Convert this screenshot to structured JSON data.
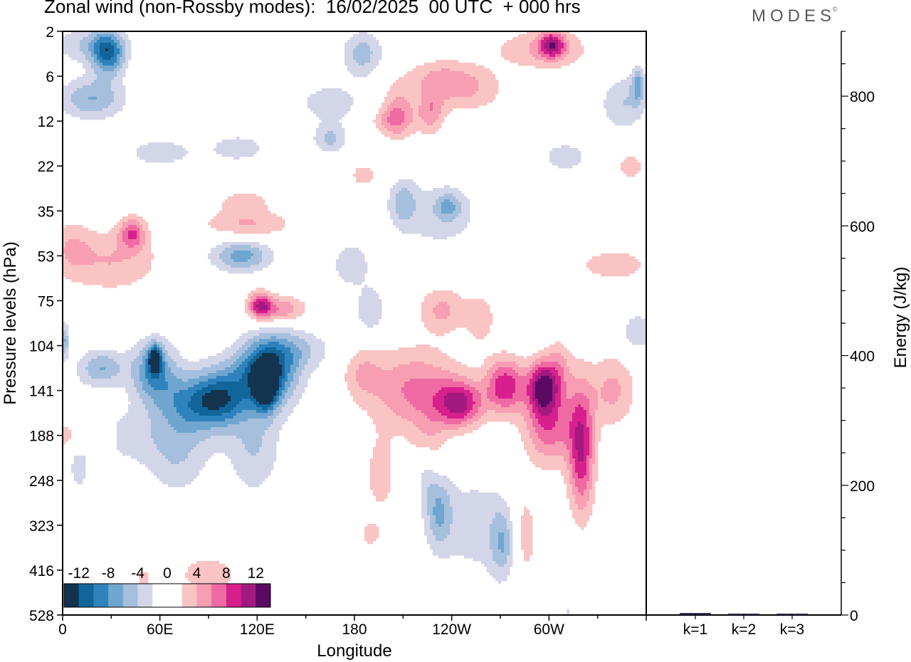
{
  "title": "Zonal wind (non-Rossby modes):  16/02/2025  00 UTC  + 000 hrs",
  "logo": "MODES",
  "logo_mark": "©",
  "chart_data": [
    {
      "type": "heatmap",
      "title": "Zonal wind (non-Rossby modes):  16/02/2025  00 UTC  + 000 hrs",
      "xlabel": "Longitude",
      "ylabel": "Pressure levels (hPa)",
      "x_ticks": [
        {
          "label": "0",
          "lon": 0
        },
        {
          "label": "60E",
          "lon": 60
        },
        {
          "label": "120E",
          "lon": 120
        },
        {
          "label": "180",
          "lon": 180
        },
        {
          "label": "120W",
          "lon": 240
        },
        {
          "label": "60W",
          "lon": 300
        }
      ],
      "xlim": [
        0,
        360
      ],
      "y_ticks": [
        "2",
        "6",
        "12",
        "22",
        "35",
        "53",
        "75",
        "104",
        "141",
        "188",
        "248",
        "323",
        "416",
        "528"
      ],
      "colorbar": {
        "labels": [
          "-12",
          "-8",
          "-4",
          "0",
          "4",
          "8",
          "12"
        ],
        "colors": [
          "#13334f",
          "#12659a",
          "#2f83bd",
          "#6fa6d0",
          "#a6bfdd",
          "#d3d5e8",
          "#ffffff",
          "#ffffff",
          "#f9c4c3",
          "#f79eb3",
          "#ef6aa2",
          "#d7208d",
          "#a21a80",
          "#5b0a63"
        ]
      },
      "blobs": [
        {
          "lon": 218,
          "lev": 8.0,
          "v": 6.5,
          "wx": 28,
          "wy": 0.9
        },
        {
          "lon": 245,
          "lev": 8.3,
          "v": 9.5,
          "wx": 14,
          "wy": 0.5
        },
        {
          "lon": 273,
          "lev": 7.9,
          "v": 9.5,
          "wx": 12,
          "wy": 0.6
        },
        {
          "lon": 296,
          "lev": 7.9,
          "v": 10.5,
          "wx": 9,
          "wy": 0.55
        },
        {
          "lon": 300,
          "lev": 8.7,
          "v": 8,
          "wx": 15,
          "wy": 0.9
        },
        {
          "lon": 320,
          "lev": 9.3,
          "v": 10,
          "wx": 8,
          "wy": 1.4
        },
        {
          "lon": 185,
          "lev": 7.6,
          "v": 3.5,
          "wx": 12,
          "wy": 0.6
        },
        {
          "lon": 226,
          "lev": 9.2,
          "v": 3.0,
          "wx": 10,
          "wy": 0.7
        },
        {
          "lon": 234,
          "lev": 6.2,
          "v": 4.5,
          "wx": 14,
          "wy": 0.5
        },
        {
          "lon": 258,
          "lev": 6.4,
          "v": 3,
          "wx": 10,
          "wy": 0.6
        },
        {
          "lon": 339,
          "lev": 8.0,
          "v": 4.5,
          "wx": 14,
          "wy": 0.8
        },
        {
          "lon": 306,
          "lev": 7.5,
          "v": 4,
          "wx": 8,
          "wy": 0.6
        },
        {
          "lon": 134,
          "lev": 6.2,
          "v": 6,
          "wx": 16,
          "wy": 0.3
        },
        {
          "lon": 122,
          "lev": 6.1,
          "v": 8.5,
          "wx": 7,
          "wy": 0.3
        },
        {
          "lon": 140,
          "lev": 7.1,
          "v": -4,
          "wx": 26,
          "wy": 0.45
        },
        {
          "lon": 118,
          "lev": 7.6,
          "v": -4,
          "wx": 20,
          "wy": 0.45
        },
        {
          "lon": 100,
          "lev": 8.2,
          "v": -4,
          "wx": 20,
          "wy": 0.5
        },
        {
          "lon": 190,
          "lev": 6.2,
          "v": -4,
          "wx": 9,
          "wy": 0.5
        },
        {
          "lon": 110,
          "lev": 5.0,
          "v": -7,
          "wx": 18,
          "wy": 0.35
        },
        {
          "lon": 128,
          "lev": 7.6,
          "v": -8.5,
          "wx": 18,
          "wy": 0.85
        },
        {
          "lon": 125,
          "lev": 7.9,
          "v": -11.5,
          "wx": 7,
          "wy": 0.5
        },
        {
          "lon": 96,
          "lev": 8.2,
          "v": -7,
          "wx": 16,
          "wy": 0.7
        },
        {
          "lon": 56,
          "lev": 7.6,
          "v": -8,
          "wx": 14,
          "wy": 0.7
        },
        {
          "lon": 57,
          "lev": 7.3,
          "v": -11,
          "wx": 4,
          "wy": 0.3
        },
        {
          "lon": 76,
          "lev": 8.3,
          "v": -6,
          "wx": 18,
          "wy": 0.7
        },
        {
          "lon": 24,
          "lev": 7.5,
          "v": -6,
          "wx": 14,
          "wy": 0.4
        },
        {
          "lon": 1,
          "lev": 6.9,
          "v": -6,
          "wx": 3,
          "wy": 0.4
        },
        {
          "lon": 70,
          "lev": 9.4,
          "v": -4,
          "wx": 20,
          "wy": 0.9
        },
        {
          "lon": 118,
          "lev": 9.3,
          "v": -4,
          "wx": 16,
          "wy": 1.0
        },
        {
          "lon": 38,
          "lev": 9.0,
          "v": -3,
          "wx": 20,
          "wy": 0.6
        },
        {
          "lon": 10,
          "lev": 9.4,
          "v": -3,
          "wx": 8,
          "wy": 1.1
        },
        {
          "lon": 60,
          "lev": 2.7,
          "v": -3.5,
          "wx": 20,
          "wy": 0.3
        },
        {
          "lon": 8,
          "lev": 9.0,
          "v": 4,
          "wx": 20,
          "wy": 0.4
        },
        {
          "lon": 43,
          "lev": 4.5,
          "v": 7,
          "wx": 8,
          "wy": 0.35
        },
        {
          "lon": 30,
          "lev": 5.1,
          "v": 4,
          "wx": 30,
          "wy": 0.7
        },
        {
          "lon": 114,
          "lev": 4.3,
          "v": 4,
          "wx": 28,
          "wy": 0.3
        },
        {
          "lon": 28,
          "lev": 0.5,
          "v": -9.5,
          "wx": 10,
          "wy": 0.5
        },
        {
          "lon": 18,
          "lev": 1.5,
          "v": -6,
          "wx": 20,
          "wy": 0.45
        },
        {
          "lon": 16,
          "lev": 0.3,
          "v": -4,
          "wx": 22,
          "wy": 0.4
        },
        {
          "lon": 185,
          "lev": 0.5,
          "v": -5,
          "wx": 12,
          "wy": 0.5
        },
        {
          "lon": 165,
          "lev": 1.6,
          "v": -3,
          "wx": 22,
          "wy": 0.5
        },
        {
          "lon": 165,
          "lev": 2.4,
          "v": -4.5,
          "wx": 10,
          "wy": 0.3
        },
        {
          "lon": 108,
          "lev": 2.6,
          "v": -3,
          "wx": 20,
          "wy": 0.35
        },
        {
          "lon": 202,
          "lev": 2.0,
          "v": 3,
          "wx": 14,
          "wy": 0.3
        },
        {
          "lon": 248,
          "lev": 1.3,
          "v": 4,
          "wx": 24,
          "wy": 0.5
        },
        {
          "lon": 207,
          "lev": 1.8,
          "v": 5,
          "wx": 10,
          "wy": 0.6
        },
        {
          "lon": 227,
          "lev": 1.8,
          "v": 5,
          "wx": 8,
          "wy": 0.5
        },
        {
          "lon": 232,
          "lev": 1.0,
          "v": 3,
          "wx": 22,
          "wy": 0.4
        },
        {
          "lon": 302,
          "lev": 0.3,
          "v": 9,
          "wx": 8,
          "wy": 0.3
        },
        {
          "lon": 296,
          "lev": 0.4,
          "v": 4,
          "wx": 30,
          "wy": 0.45
        },
        {
          "lon": 346,
          "lev": 1.6,
          "v": -4,
          "wx": 14,
          "wy": 0.6
        },
        {
          "lon": 355,
          "lev": 1.2,
          "v": -6,
          "wx": 4,
          "wy": 0.4
        },
        {
          "lon": 232,
          "lev": 4.1,
          "v": -3,
          "wx": 28,
          "wy": 0.8
        },
        {
          "lon": 210,
          "lev": 3.8,
          "v": -4.5,
          "wx": 8,
          "wy": 0.5
        },
        {
          "lon": 238,
          "lev": 3.9,
          "v": -4.5,
          "wx": 8,
          "wy": 0.3
        },
        {
          "lon": 310,
          "lev": 2.8,
          "v": -2.5,
          "wx": 22,
          "wy": 0.5
        },
        {
          "lon": 350,
          "lev": 3.0,
          "v": 3,
          "wx": 10,
          "wy": 0.35
        },
        {
          "lon": 340,
          "lev": 5.2,
          "v": 3.5,
          "wx": 22,
          "wy": 0.35
        },
        {
          "lon": 178,
          "lev": 5.2,
          "v": -3.5,
          "wx": 12,
          "wy": 0.5
        },
        {
          "lon": 355,
          "lev": 6.7,
          "v": -4,
          "wx": 10,
          "wy": 0.4
        },
        {
          "lon": 5,
          "lev": 4.8,
          "v": 3,
          "wx": 12,
          "wy": 0.6
        },
        {
          "lon": 112,
          "lev": 3.8,
          "v": 3,
          "wx": 18,
          "wy": 0.3
        },
        {
          "lon": 186,
          "lev": 3.2,
          "v": 3,
          "wx": 10,
          "wy": 0.3
        },
        {
          "lon": 232,
          "lev": 10.7,
          "v": -5.5,
          "wx": 8,
          "wy": 0.8
        },
        {
          "lon": 272,
          "lev": 11.4,
          "v": -5.5,
          "wx": 8,
          "wy": 0.8
        },
        {
          "lon": 254,
          "lev": 11.0,
          "v": -3,
          "wx": 24,
          "wy": 1.2
        },
        {
          "lon": 196,
          "lev": 9.9,
          "v": 3,
          "wx": 10,
          "wy": 0.9
        },
        {
          "lon": 284,
          "lev": 11.2,
          "v": 3.5,
          "wx": 10,
          "wy": 1.1
        },
        {
          "lon": 90,
          "lev": 12.1,
          "v": 3,
          "wx": 22,
          "wy": 0.5
        },
        {
          "lon": 50,
          "lev": 12.3,
          "v": 3,
          "wx": 5,
          "wy": 0.4
        },
        {
          "lon": 224,
          "lev": 9.8,
          "v": -3,
          "wx": 6,
          "wy": 0.7
        },
        {
          "lon": 312,
          "lev": 13.2,
          "v": -2.5,
          "wx": 3,
          "wy": 0.7
        },
        {
          "lon": 190,
          "lev": 11.2,
          "v": 3,
          "wx": 6,
          "wy": 0.3
        }
      ]
    },
    {
      "type": "bar",
      "categories": [
        "k=1",
        "k=2",
        "k=3"
      ],
      "values": [
        3,
        2,
        2
      ],
      "ylabel": "Energy (J/kg)",
      "ylim": [
        0,
        900
      ],
      "y_ticks": [
        0,
        200,
        400,
        600,
        800
      ],
      "bar_color": "#1a1a40"
    }
  ]
}
